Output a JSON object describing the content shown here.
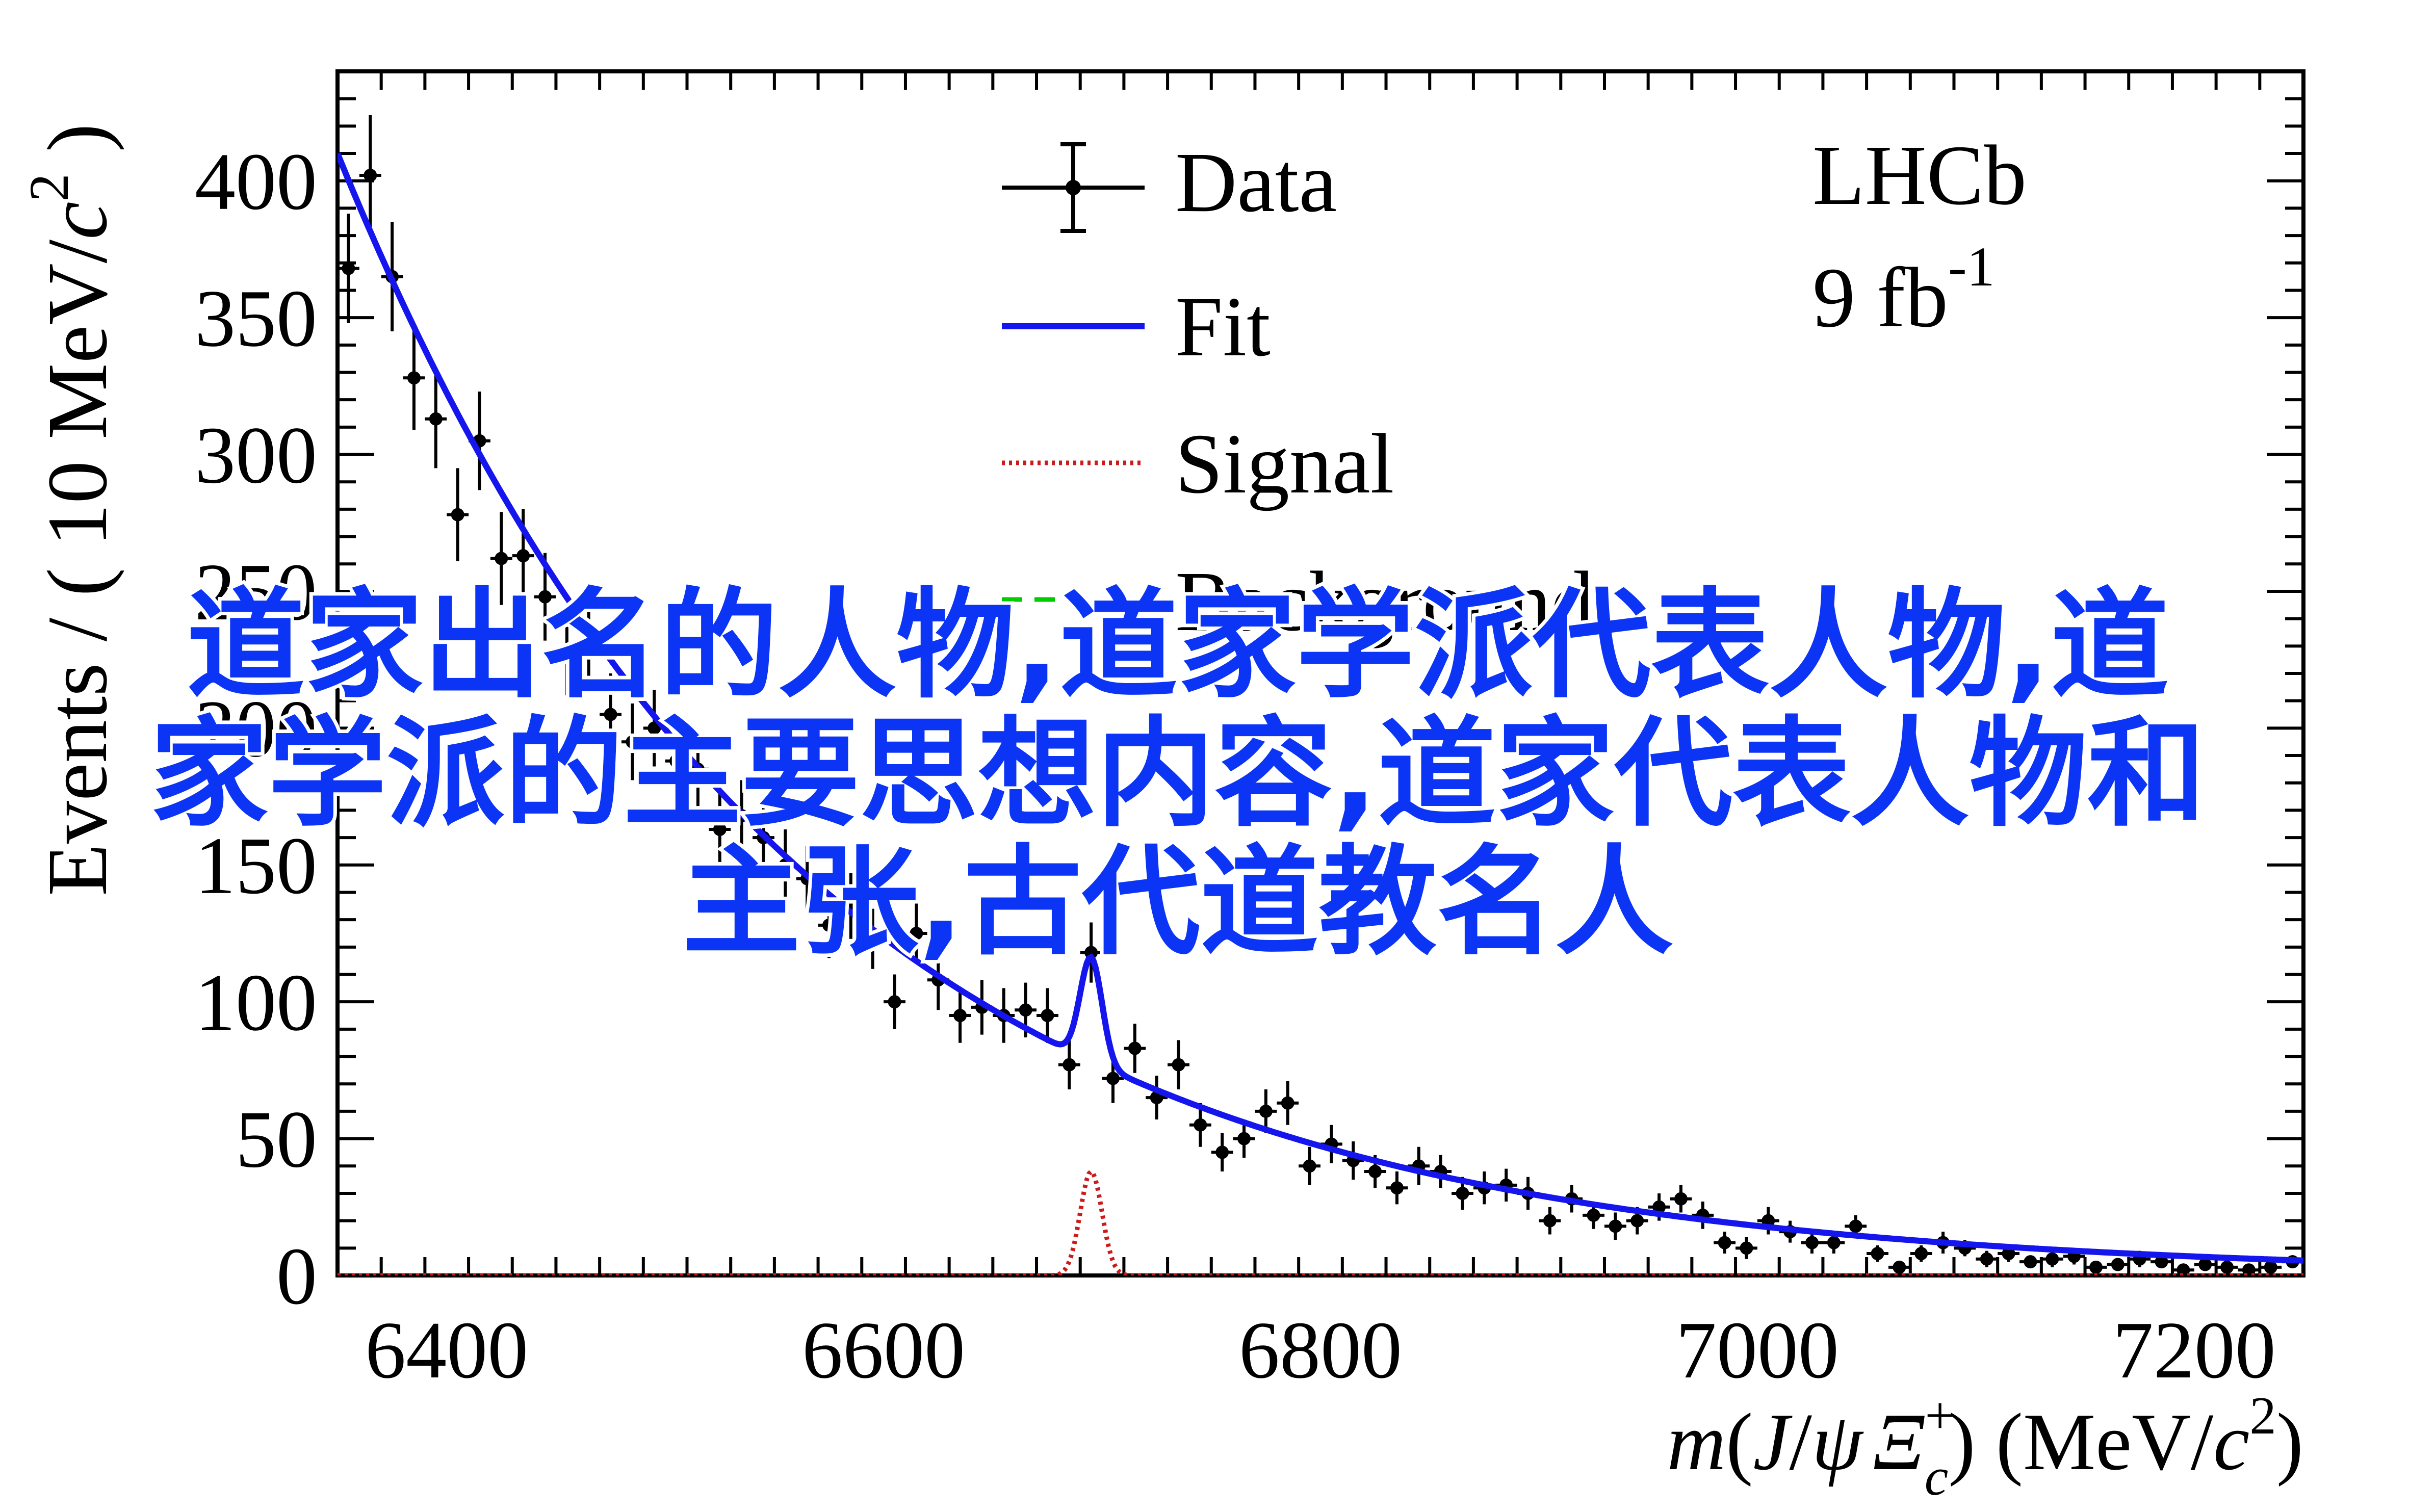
{
  "watermark": {
    "line1": "道家出名的人物,道家学派代表人物,道",
    "line2": "家学派的主要思想内容,道家代表人物和",
    "line3": "主张,古代道教名人"
  },
  "chart_data": {
    "type": "scatter",
    "xlim": [
      6350,
      7250
    ],
    "ylim": [
      0,
      440
    ],
    "xticks": [
      6400,
      6600,
      6800,
      7000,
      7200
    ],
    "xtick_labels": [
      "6400",
      "6600",
      "6800",
      "7000",
      "7200"
    ],
    "yticks": [
      0,
      50,
      100,
      150,
      200,
      250,
      300,
      350,
      400
    ],
    "ytick_labels": [
      "0",
      "50",
      "100",
      "150",
      "200",
      "250",
      "300",
      "350",
      "400"
    ],
    "x_minor_step": 20,
    "y_minor_step": 10,
    "ylabel": {
      "prefix": "Events / ( 10 MeV/",
      "var": "c",
      "sup": "2",
      "suffix": " )"
    },
    "xlabel": {
      "m": "m",
      "open": "(",
      "J": "J",
      "slash": "/",
      "psi": "ψ",
      "Xi": "Ξ",
      "sub": "c",
      "sup": "+",
      "close": ")",
      "unit_pre": " (MeV/",
      "unit_var": "c",
      "unit_sup": "2",
      "unit_post": ")"
    },
    "annotation": {
      "experiment": "LHCb",
      "lumi_value": "9 fb",
      "lumi_sup": "-1"
    },
    "legend": {
      "position": "top-center",
      "entries": [
        {
          "label": "Data",
          "style": "points"
        },
        {
          "label": "Fit",
          "style": "solid",
          "color": "#1515ee"
        },
        {
          "label": "Signal",
          "style": "dotted",
          "color": "#cc1a1a"
        },
        {
          "label": "Background",
          "style": "dashed",
          "color": "#00cc00"
        }
      ]
    },
    "series": [
      {
        "name": "Data",
        "x": [
          6355,
          6365,
          6375,
          6385,
          6395,
          6405,
          6415,
          6425,
          6435,
          6445,
          6455,
          6465,
          6475,
          6485,
          6495,
          6505,
          6515,
          6525,
          6535,
          6545,
          6555,
          6565,
          6575,
          6585,
          6595,
          6605,
          6615,
          6625,
          6635,
          6645,
          6655,
          6665,
          6675,
          6685,
          6695,
          6705,
          6715,
          6725,
          6735,
          6745,
          6755,
          6765,
          6775,
          6785,
          6795,
          6805,
          6815,
          6825,
          6835,
          6845,
          6855,
          6865,
          6875,
          6885,
          6895,
          6905,
          6915,
          6925,
          6935,
          6945,
          6955,
          6965,
          6975,
          6985,
          6995,
          7005,
          7015,
          7025,
          7035,
          7045,
          7055,
          7065,
          7075,
          7085,
          7095,
          7105,
          7115,
          7125,
          7135,
          7145,
          7155,
          7165,
          7175,
          7185,
          7195,
          7205,
          7215,
          7225,
          7235,
          7245
        ],
        "y": [
          368,
          402,
          365,
          328,
          313,
          278,
          305,
          262,
          263,
          248,
          228,
          230,
          205,
          195,
          200,
          188,
          185,
          163,
          168,
          160,
          150,
          145,
          128,
          135,
          123,
          100,
          125,
          108,
          95,
          98,
          95,
          97,
          95,
          77,
          118,
          72,
          83,
          65,
          77,
          55,
          45,
          50,
          60,
          63,
          40,
          48,
          42,
          38,
          32,
          40,
          38,
          30,
          32,
          33,
          30,
          20,
          28,
          22,
          18,
          20,
          25,
          28,
          22,
          12,
          10,
          20,
          16,
          12,
          12,
          18,
          8,
          3,
          8,
          12,
          10,
          6,
          8,
          5,
          6,
          7,
          3,
          4,
          6,
          5,
          2,
          4,
          3,
          2,
          3,
          5
        ],
        "yerr": [
          20,
          22,
          20,
          19,
          18,
          17,
          18,
          17,
          17,
          16,
          16,
          16,
          15,
          14,
          14,
          14,
          14,
          13,
          13,
          13,
          13,
          12,
          12,
          12,
          11,
          10,
          11,
          11,
          10,
          10,
          10,
          10,
          10,
          9,
          11,
          9,
          9,
          8,
          9,
          8,
          7,
          7,
          8,
          8,
          7,
          7,
          7,
          6,
          6,
          7,
          6,
          6,
          6,
          6,
          6,
          5,
          5,
          5,
          5,
          5,
          5,
          5,
          5,
          4,
          4,
          5,
          4,
          4,
          4,
          4,
          3,
          2,
          3,
          4,
          3,
          3,
          3,
          2,
          3,
          3,
          2,
          2,
          3,
          2,
          2,
          2,
          2,
          2,
          2,
          2
        ]
      },
      {
        "name": "Fit",
        "model": "exponential background plus gaussian signal",
        "background_amplitude": 410,
        "background_x0": 6350,
        "background_slope": 0.0048,
        "signal_amplitude": 38,
        "signal_mean": 6695,
        "signal_sigma": 5
      },
      {
        "name": "Signal",
        "model": "gaussian",
        "signal_amplitude": 38,
        "signal_mean": 6695,
        "signal_sigma": 5
      }
    ]
  }
}
